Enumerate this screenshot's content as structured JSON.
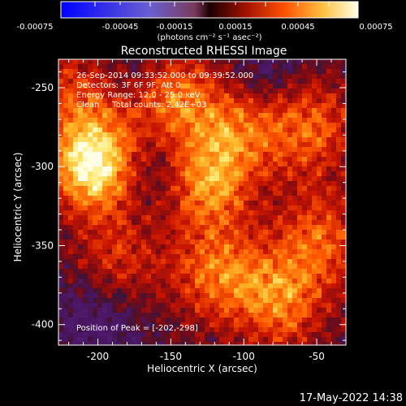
{
  "colorbar": {
    "tick_labels": [
      "-0.00075",
      "-0.00045",
      "-0.00015",
      "0.00015",
      "0.00045",
      "0.00075"
    ],
    "unit_label": "(photons cm⁻² s⁻¹ asec⁻²)",
    "range": [
      -0.00075,
      0.00075
    ]
  },
  "chart_data": {
    "type": "heatmap",
    "title": "Reconstructed RHESSI Image",
    "xlabel": "Heliocentric X (arcsec)",
    "ylabel": "Heliocentric Y (arcsec)",
    "xlim": [
      -227,
      -30
    ],
    "ylim": [
      -413,
      -232
    ],
    "x_ticks": [
      -200,
      -150,
      -100,
      -50
    ],
    "y_ticks": [
      -250,
      -300,
      -350,
      -400
    ],
    "annotations": [
      "26-Sep-2014 09:33:52.000 to 09:39:52.000",
      "Detectors: 3F 6F 9F, Att 0",
      "Energy Range: 12.0 - 25.0 keV",
      "Clean     Total counts: 2.42E+03"
    ],
    "peak_label": "Position of Peak = [-202,-298]",
    "peak": [
      -202,
      -298
    ],
    "bright_regions": [
      {
        "x": -202,
        "y": -298,
        "level": 1.0
      },
      {
        "x": -150,
        "y": -255,
        "level": 0.55
      },
      {
        "x": -125,
        "y": -310,
        "level": 0.6
      },
      {
        "x": -105,
        "y": -275,
        "level": 0.45
      },
      {
        "x": -118,
        "y": -368,
        "level": 0.5
      },
      {
        "x": -75,
        "y": -385,
        "level": 0.55
      },
      {
        "x": -55,
        "y": -275,
        "level": 0.5
      },
      {
        "x": -48,
        "y": -345,
        "level": 0.45
      },
      {
        "x": -185,
        "y": -360,
        "level": 0.35
      },
      {
        "x": -215,
        "y": -250,
        "level": 0.35
      }
    ],
    "dark_regions": [
      {
        "x": -165,
        "y": -300,
        "level": -0.25
      },
      {
        "x": -200,
        "y": -395,
        "level": -0.25
      },
      {
        "x": -175,
        "y": -235,
        "level": -0.2
      },
      {
        "x": -85,
        "y": -240,
        "level": -0.2
      }
    ]
  },
  "timestamp": "17-May-2022 14:38"
}
